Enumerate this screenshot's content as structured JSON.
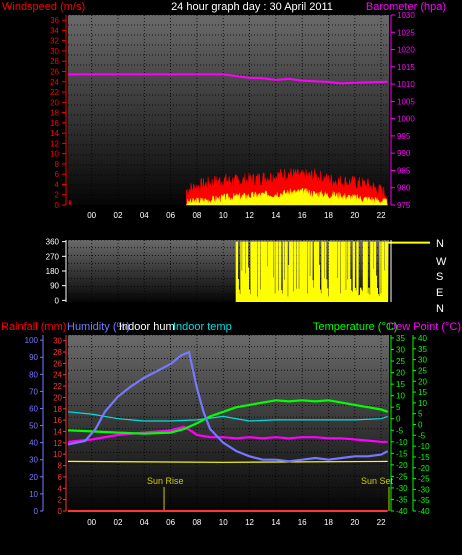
{
  "header": {
    "title": "24 hour graph day : 30 April 2011",
    "wind_label": "Windspeed (m/s)",
    "baro_label": "Barometer (hpa)"
  },
  "middle": {
    "compass_labels": [
      "N",
      "W",
      "S",
      "E",
      "N"
    ]
  },
  "bottom": {
    "rain_label": "Rainfall (mm)",
    "humidity_label": "Humidity (%)",
    "indoor_hum_label": "Indoor hum",
    "indoor_temp_label": "Indoor temp",
    "temp_label": "Temperature (°C)",
    "dew_label": "Dew Point (°C)",
    "sunrise_label": "Sun Rise",
    "sunset_label": "Sun Set"
  },
  "colors": {
    "wind": "#ff0000",
    "gust": "#ffff00",
    "baro": "#ff00ff",
    "direction": "#ffff00",
    "rain": "#ff3333",
    "humidity": "#7777ff",
    "indoor_temp": "#00e0e0",
    "temperature": "#00ff00",
    "dewpoint": "#ff00ff",
    "indoor_hum": "#ffff00",
    "sun": "#cccc00"
  },
  "chart_data": [
    {
      "type": "line",
      "title": "24 hour graph day : 30 April 2011",
      "x_ticks": [
        "00",
        "02",
        "04",
        "06",
        "08",
        "10",
        "12",
        "14",
        "16",
        "18",
        "20",
        "22"
      ],
      "left_axis": {
        "label": "Windspeed (m/s)",
        "ticks": [
          0,
          2,
          4,
          6,
          8,
          10,
          12,
          14,
          16,
          18,
          20,
          22,
          24,
          26,
          28,
          30,
          32,
          34,
          36
        ],
        "ylim": [
          0,
          37
        ]
      },
      "right_axis": {
        "label": "Barometer (hpa)",
        "ticks": [
          975,
          980,
          985,
          990,
          995,
          1000,
          1005,
          1010,
          1015,
          1020,
          1025,
          1030
        ],
        "ylim": [
          975,
          1030
        ]
      },
      "series": [
        {
          "name": "Windspeed",
          "axis": "left",
          "x": [
            -1.8,
            7.2,
            8,
            9,
            10,
            11,
            12,
            13,
            14,
            15,
            16,
            17,
            18,
            19,
            20,
            21,
            22,
            22.5
          ],
          "values": [
            0.8,
            2.8,
            3.5,
            4.2,
            4.8,
            4.5,
            4.8,
            5.2,
            5.6,
            6,
            5.4,
            5.6,
            4.8,
            4.5,
            4.2,
            3.8,
            2.6,
            2
          ]
        },
        {
          "name": "Gust",
          "axis": "left",
          "x": [
            7.2,
            8,
            9,
            10,
            11,
            12,
            13,
            14,
            15,
            16,
            17,
            18,
            19,
            20,
            21,
            22,
            22.5
          ],
          "values": [
            0.4,
            0.8,
            1,
            1.4,
            1.6,
            1.8,
            2,
            2.2,
            2.4,
            2.6,
            2.2,
            2,
            1.8,
            1.4,
            1.2,
            0.8,
            0.4
          ]
        },
        {
          "name": "Barometer",
          "axis": "right",
          "x": [
            -1.8,
            2,
            6,
            10,
            12,
            13,
            14,
            15,
            16,
            17,
            18,
            19,
            20,
            21,
            22,
            22.5
          ],
          "values": [
            1012.8,
            1012.8,
            1012.8,
            1012.8,
            1011.8,
            1011.7,
            1011.2,
            1011.5,
            1011,
            1010.8,
            1010.6,
            1010.2,
            1010.4,
            1010.5,
            1010.6,
            1010.7
          ]
        }
      ]
    },
    {
      "type": "area",
      "left_axis": {
        "ticks": [
          0,
          90,
          180,
          270,
          360
        ],
        "ylim": [
          -10,
          370
        ]
      },
      "right_axis": {
        "ticks": [
          "N",
          "W",
          "S",
          "E",
          "N"
        ]
      },
      "series": [
        {
          "name": "Wind direction",
          "x": [
            11,
            12,
            13,
            14,
            15,
            16,
            17,
            18,
            19,
            20,
            21,
            22,
            22.5
          ],
          "values": [
            340,
            350,
            300,
            330,
            350,
            320,
            340,
            310,
            350,
            320,
            180,
            350,
            360
          ]
        }
      ]
    },
    {
      "type": "line",
      "rain_axis": {
        "label": "Rainfall (mm)",
        "ticks": [
          0,
          2,
          4,
          6,
          8,
          10,
          12,
          14,
          16,
          18,
          20,
          22,
          24,
          26,
          28,
          30
        ]
      },
      "humidity_axis": {
        "label": "Humidity (%)",
        "ticks": [
          0,
          10,
          20,
          30,
          40,
          50,
          60,
          70,
          80,
          90,
          100
        ],
        "ylim": [
          0,
          103
        ]
      },
      "temp_axis": {
        "label": "Temperature (°C)",
        "ticks": [
          -40,
          -35,
          -30,
          -25,
          -20,
          -15,
          -10,
          -5,
          0,
          5,
          10,
          15,
          20,
          25,
          30,
          35
        ]
      },
      "dew_axis": {
        "label": "Dew Point (°C)",
        "ticks": [
          -40,
          -35,
          -30,
          -25,
          -20,
          -15,
          -10,
          -5,
          0,
          5,
          10,
          15,
          20,
          25,
          30,
          35,
          40
        ]
      },
      "sun_rise_hour": 5.5,
      "sun_set_hour": 22.6,
      "series": [
        {
          "name": "Humidity",
          "x": [
            -1.8,
            -0.5,
            0.3,
            1,
            2,
            3,
            4,
            5,
            6,
            6.8,
            7.4,
            8,
            8.5,
            9,
            10,
            11,
            12,
            13,
            14,
            15,
            16,
            17,
            18,
            19,
            20,
            21,
            22,
            22.5
          ],
          "values": [
            39,
            41,
            48,
            58,
            67,
            73,
            78,
            82,
            86,
            91,
            93,
            72,
            58,
            48,
            40,
            35,
            32,
            30,
            30,
            29,
            30,
            31,
            30,
            31,
            32,
            32,
            33,
            35
          ]
        },
        {
          "name": "Indoor temp",
          "x": [
            -1.8,
            0,
            2,
            4,
            6,
            8,
            10,
            12,
            14,
            16,
            18,
            20,
            22,
            22.5
          ],
          "values": [
            3,
            2,
            0,
            -1,
            -1,
            -0.5,
            1,
            -1,
            -0.5,
            -0.5,
            -0.5,
            -0.5,
            0,
            1
          ]
        },
        {
          "name": "Temperature",
          "x": [
            -1.8,
            0,
            2,
            4,
            6,
            7,
            8,
            9,
            10,
            11,
            12,
            13,
            14,
            15,
            16,
            17,
            18,
            19,
            20,
            21,
            22,
            22.5
          ],
          "values": [
            -5,
            -5.5,
            -6,
            -6.5,
            -6,
            -4.5,
            -2,
            1,
            3,
            5,
            6,
            7,
            8,
            7.5,
            8,
            7.5,
            8,
            7,
            6,
            5,
            4,
            3
          ]
        },
        {
          "name": "Dew Point",
          "x": [
            -1.8,
            0,
            2,
            4,
            6,
            7,
            7.5,
            8,
            9,
            10,
            11,
            12,
            13,
            14,
            15,
            16,
            17,
            18,
            19,
            20,
            21,
            22,
            22.5
          ],
          "values": [
            -10,
            -9,
            -7,
            -6,
            -5,
            -3.5,
            -5,
            -7,
            -8,
            -8,
            -8.5,
            -8,
            -8.5,
            -8,
            -8.5,
            -8,
            -8,
            -8.5,
            -8.5,
            -9,
            -9.5,
            -10,
            -10
          ]
        },
        {
          "name": "Indoor hum",
          "x": [
            -1.8,
            10,
            22.5
          ],
          "values": [
            29,
            28.5,
            29
          ]
        },
        {
          "name": "Rainfall",
          "x": [
            -1.8,
            22.5
          ],
          "values": [
            0,
            0
          ]
        }
      ]
    }
  ]
}
